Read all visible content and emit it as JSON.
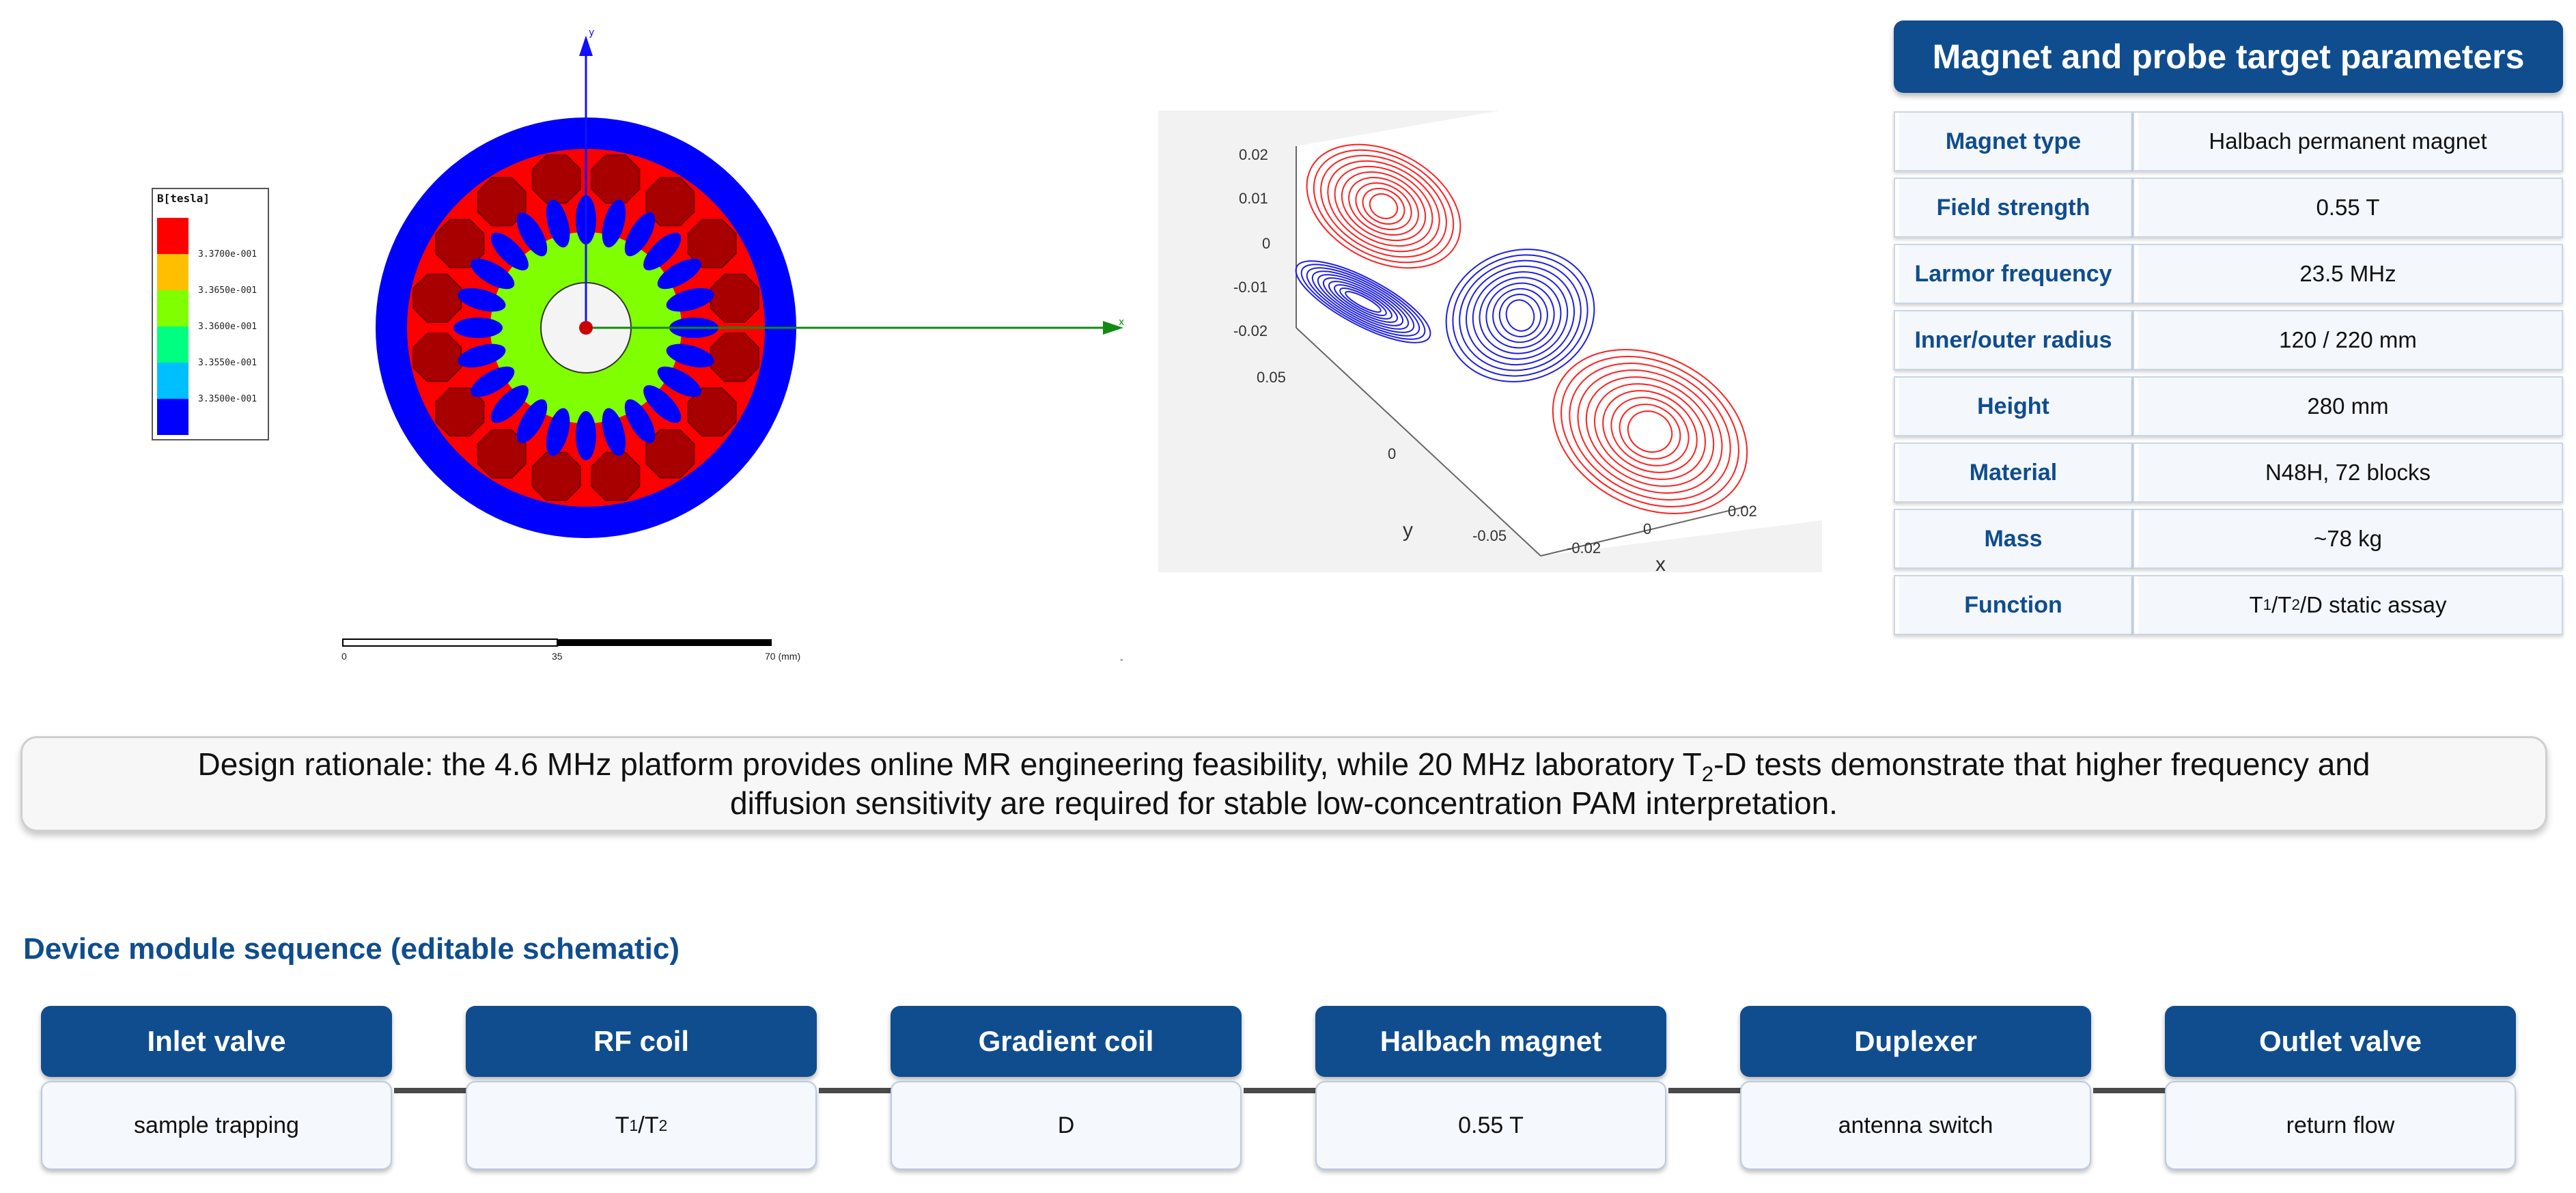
{
  "fea_plot": {
    "legend_title": "B[tesla]",
    "legend_levels": [
      {
        "label": "3.3700e-001",
        "color": "#ff0000"
      },
      {
        "label": "3.3650e-001",
        "color": "#ffbf00"
      },
      {
        "label": "3.3600e-001",
        "color": "#7fff00"
      },
      {
        "label": "3.3550e-001",
        "color": "#00ff80"
      },
      {
        "label": "3.3500e-001",
        "color": "#00bfff"
      },
      {
        "label": "",
        "color": "#0000ff"
      }
    ],
    "axis_y": "y",
    "axis_x": "x",
    "scale_ticks": [
      "0",
      "35",
      "70 (mm)"
    ]
  },
  "field_plot": {
    "z_ticks": [
      "0.02",
      "0.01",
      "0",
      "-0.01",
      "-0.02"
    ],
    "y_ticks": [
      "0.05",
      "0",
      "-0.05"
    ],
    "x_ticks": [
      "-0.02",
      "0",
      "0.02"
    ],
    "y_label": "y",
    "x_label": "x",
    "colors": {
      "positive": "#ff2020",
      "negative": "#1f1fe6"
    }
  },
  "params": {
    "title": "Magnet and probe target parameters",
    "rows": [
      {
        "label": "Magnet type",
        "value": "Halbach permanent magnet"
      },
      {
        "label": "Field strength",
        "value": "0.55 T"
      },
      {
        "label": "Larmor frequency",
        "value": "23.5 MHz"
      },
      {
        "label": "Inner/outer radius",
        "value": "120 / 220 mm"
      },
      {
        "label": "Height",
        "value": "280 mm"
      },
      {
        "label": "Material",
        "value": "N48H, 72 blocks"
      },
      {
        "label": "Mass",
        "value": "~78 kg"
      },
      {
        "label": "Function",
        "value": "T1/T2/D static assay"
      }
    ]
  },
  "rationale": {
    "line1_pre": "Design rationale: the 4.6 MHz platform provides online MR engineering feasibility, while 20 MHz laboratory T",
    "line1_sub": "2",
    "line1_post": "-D tests demonstrate that higher frequency and",
    "line2": "diffusion sensitivity are required for stable low-concentration PAM interpretation."
  },
  "sequence": {
    "title": "Device module sequence (editable schematic)",
    "modules": [
      {
        "name": "Inlet valve",
        "detail": "sample trapping"
      },
      {
        "name": "RF coil",
        "detail": "T1/T2"
      },
      {
        "name": "Gradient coil",
        "detail": "D"
      },
      {
        "name": "Halbach magnet",
        "detail": "0.55 T"
      },
      {
        "name": "Duplexer",
        "detail": "antenna switch"
      },
      {
        "name": "Outlet valve",
        "detail": "return flow"
      }
    ]
  },
  "theme": {
    "primary": "#0f4d8e"
  }
}
